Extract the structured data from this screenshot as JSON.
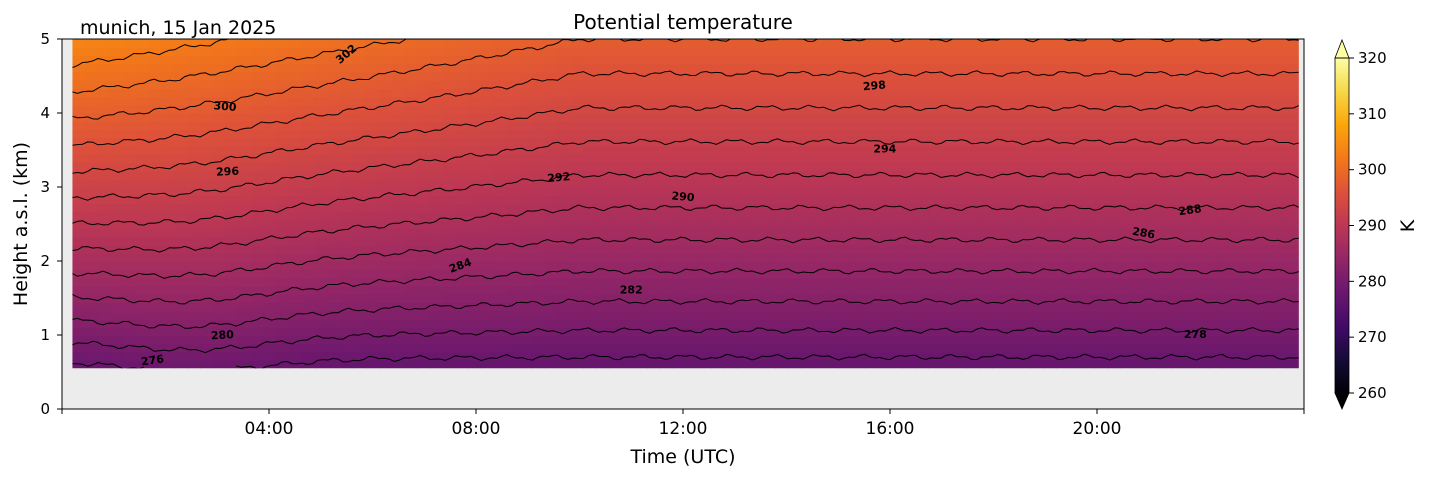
{
  "chart_data": {
    "type": "heatmap",
    "title": "Potential temperature",
    "subtitle": "munich, 15 Jan 2025",
    "xlabel": "Time (UTC)",
    "ylabel": "Height a.s.l. (km)",
    "x_unit": "hours since 00:00 UTC",
    "xlim": [
      0,
      24
    ],
    "ylim": [
      0,
      5
    ],
    "x_ticks": [
      4,
      8,
      12,
      16,
      20
    ],
    "x_tick_labels": [
      "04:00",
      "08:00",
      "12:00",
      "16:00",
      "20:00"
    ],
    "y_ticks": [
      0,
      1,
      2,
      3,
      4,
      5
    ],
    "y_tick_labels": [
      "0",
      "1",
      "2",
      "3",
      "4",
      "5"
    ],
    "data_x_range": [
      0.2,
      23.9
    ],
    "data_y_range": [
      0.55,
      5.0
    ],
    "missing_color": "#ececec",
    "colormap": "inferno",
    "colorbar": {
      "label": "K",
      "min": 260,
      "max": 320,
      "ticks": [
        260,
        270,
        280,
        290,
        300,
        310,
        320
      ],
      "extend": "both"
    },
    "contour_interval_K": 2,
    "contour_levels": [
      276,
      278,
      280,
      282,
      284,
      286,
      288,
      290,
      292,
      294,
      296,
      298,
      300,
      302
    ],
    "contour_labels": [
      {
        "level": "276",
        "x": 1.75,
        "y": 0.65,
        "angle": -8
      },
      {
        "level": "280",
        "x": 3.1,
        "y": 0.99,
        "angle": -3
      },
      {
        "level": "300",
        "x": 3.15,
        "y": 4.08,
        "angle": 5
      },
      {
        "level": "296",
        "x": 3.2,
        "y": 3.2,
        "angle": -3
      },
      {
        "level": "302",
        "x": 5.5,
        "y": 4.79,
        "angle": -40
      },
      {
        "level": "284",
        "x": 7.7,
        "y": 1.93,
        "angle": -20
      },
      {
        "level": "292",
        "x": 9.6,
        "y": 3.12,
        "angle": -5
      },
      {
        "level": "282",
        "x": 11.0,
        "y": 1.6,
        "angle": 0
      },
      {
        "level": "290",
        "x": 12.0,
        "y": 2.86,
        "angle": 5
      },
      {
        "level": "298",
        "x": 15.7,
        "y": 4.36,
        "angle": -5
      },
      {
        "level": "294",
        "x": 15.9,
        "y": 3.51,
        "angle": 0
      },
      {
        "level": "286",
        "x": 20.9,
        "y": 2.37,
        "angle": 10
      },
      {
        "level": "288",
        "x": 21.8,
        "y": 2.68,
        "angle": -8
      },
      {
        "level": "278",
        "x": 21.9,
        "y": 1.0,
        "angle": 0
      }
    ]
  }
}
